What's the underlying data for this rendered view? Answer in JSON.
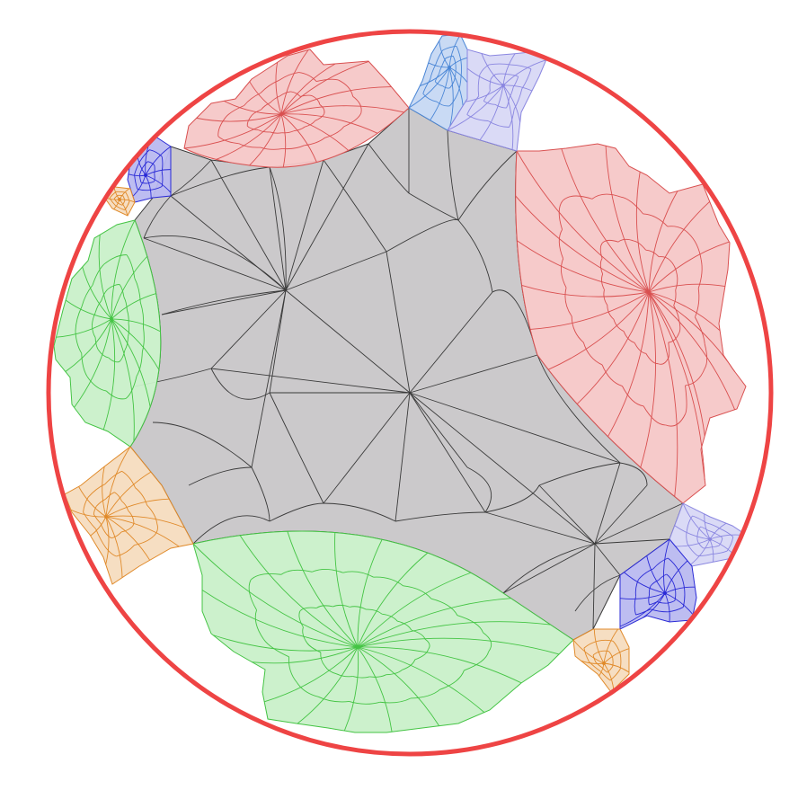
{
  "colors": {
    "background": "#ffffff",
    "boundary": "#ee4444",
    "core_fill": "#c8c6c8",
    "core_line": "#3a3a3a",
    "red_fill": "#f5c7c7",
    "red_line": "#d95050",
    "green_fill": "#c9f0c9",
    "green_line": "#44c444",
    "blue_fill": "#c6d8f3",
    "blue_line": "#4a86d6",
    "lavender_fill": "#d8d8f5",
    "lavender_line": "#8a86e0",
    "indigo_fill": "#b9b9f0",
    "indigo_line": "#2a2ad6",
    "orange_fill": "#f6dcbf",
    "orange_line": "#e08a2a"
  },
  "regions": [
    {
      "name": "core-region",
      "color_key": "core"
    },
    {
      "name": "red-region-top",
      "color_key": "red"
    },
    {
      "name": "red-region-right",
      "color_key": "red"
    },
    {
      "name": "green-region-left",
      "color_key": "green"
    },
    {
      "name": "green-region-bottom",
      "color_key": "green"
    },
    {
      "name": "blue-region-top",
      "color_key": "blue"
    },
    {
      "name": "lavender-region-top",
      "color_key": "lavender"
    },
    {
      "name": "lavender-region-right",
      "color_key": "lavender"
    },
    {
      "name": "indigo-region-upper-left",
      "color_key": "indigo"
    },
    {
      "name": "indigo-region-lower-right",
      "color_key": "indigo"
    },
    {
      "name": "orange-region-left",
      "color_key": "orange"
    },
    {
      "name": "orange-region-bottom",
      "color_key": "orange"
    },
    {
      "name": "orange-region-small-left",
      "color_key": "orange"
    }
  ]
}
